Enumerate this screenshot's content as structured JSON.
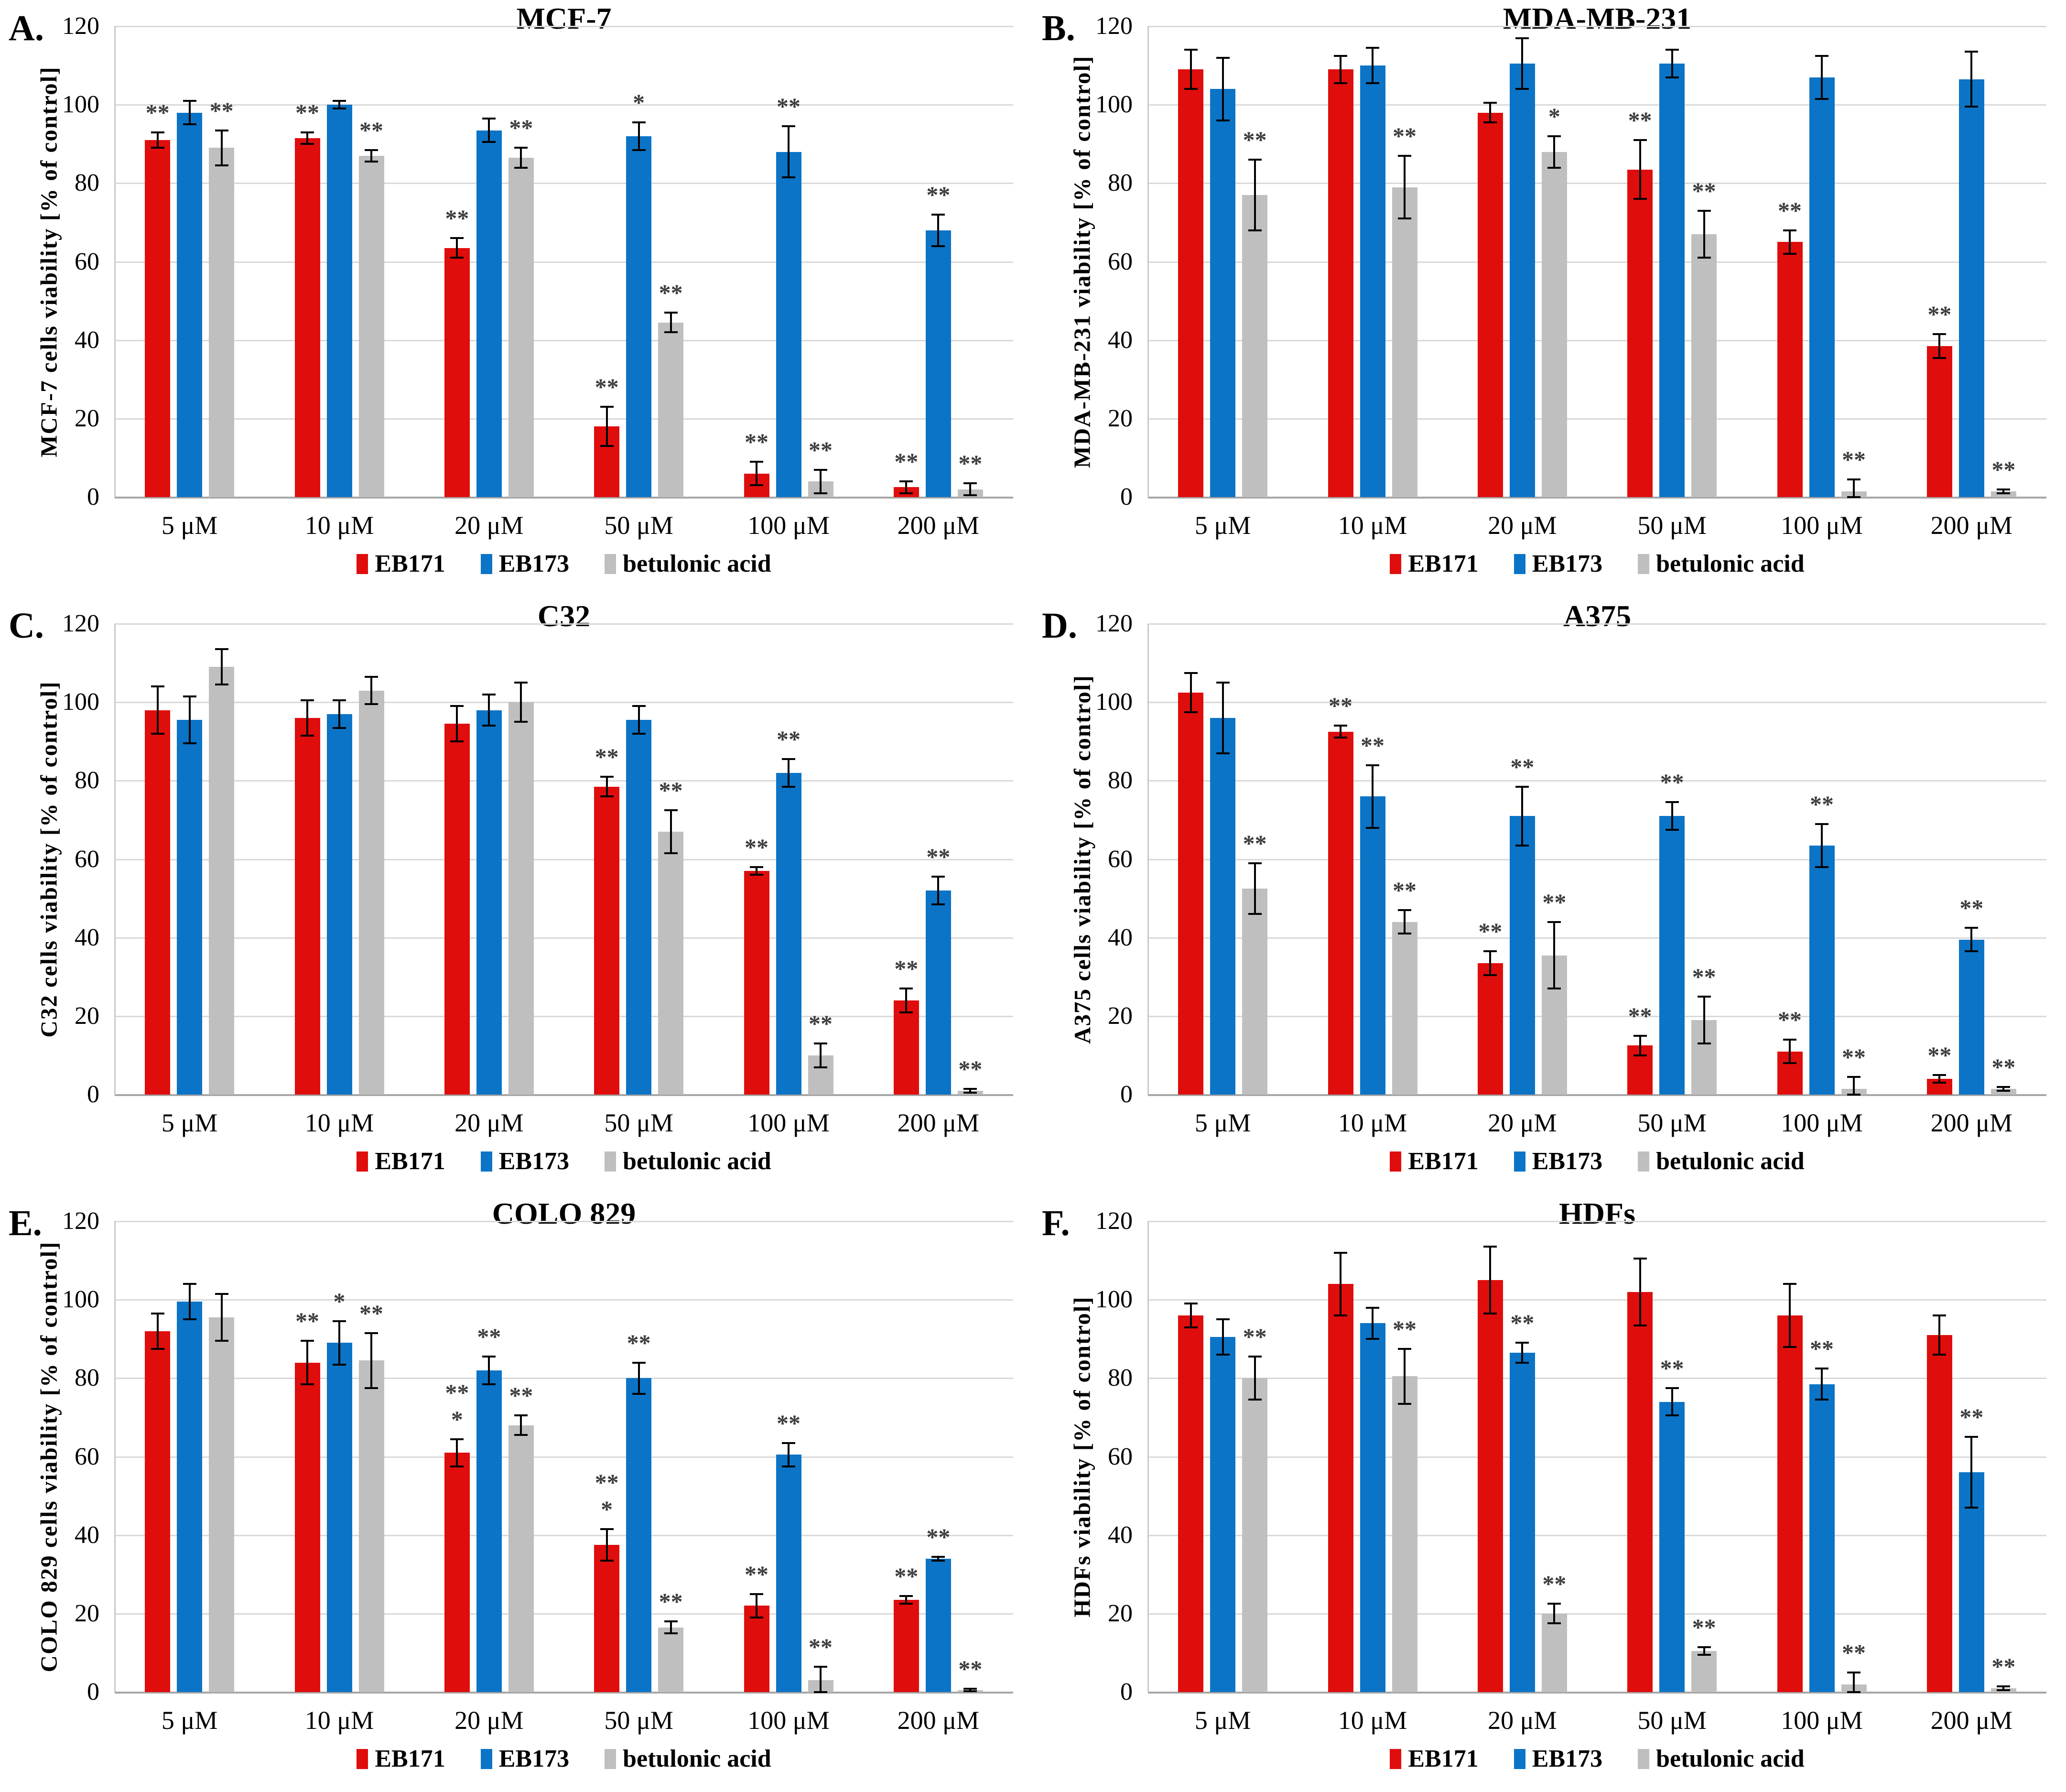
{
  "figure_type": "six-panel cell viability bar charts",
  "legend": [
    {
      "label": "EB171",
      "color": "#e00d0d"
    },
    {
      "label": "EB173",
      "color": "#0c74c6"
    },
    {
      "label": "betulonic acid",
      "color": "#bfbfbf"
    }
  ],
  "style": {
    "sig_color": "#3d3d3d",
    "grid_color": "#d9d9d9",
    "axis_color": "#a6a6a6",
    "error_bar_color": "#000000"
  },
  "chart_data": [
    {
      "type": "bar",
      "letter": "A.",
      "title": "MCF-7",
      "ylabel": "MCF-7 cells viability [% of control]",
      "categories": [
        "5 μM",
        "10 μM",
        "20 μM",
        "50 μM",
        "100 μM",
        "200 μM"
      ],
      "ylim": [
        0,
        120
      ],
      "yticks": [
        0,
        20,
        40,
        60,
        80,
        100,
        120
      ],
      "grid": true,
      "legend_position": "bottom",
      "series": [
        {
          "name": "EB171",
          "color": "#e00d0d",
          "values": [
            91,
            91.5,
            63.5,
            18,
            6,
            2.5
          ],
          "errors": [
            2,
            1.5,
            2.5,
            5,
            3,
            1.5
          ],
          "sig": [
            "**",
            "**",
            "**",
            "**",
            "**",
            "**"
          ]
        },
        {
          "name": "EB173",
          "color": "#0c74c6",
          "values": [
            98,
            100,
            93.5,
            92,
            88,
            68
          ],
          "errors": [
            3,
            1,
            3,
            3.5,
            6.5,
            4
          ],
          "sig": [
            "",
            "",
            "",
            "*",
            "**",
            "**"
          ]
        },
        {
          "name": "betulonic acid",
          "color": "#bfbfbf",
          "values": [
            89,
            87,
            86.5,
            44.5,
            4,
            2
          ],
          "errors": [
            4.5,
            1.5,
            2.5,
            2.5,
            3,
            1.5
          ],
          "sig": [
            "**",
            "**",
            "**",
            "**",
            "**",
            "**"
          ]
        }
      ]
    },
    {
      "type": "bar",
      "letter": "B.",
      "title": "MDA-MB-231",
      "ylabel": "MDA-MB-231 viability [% of control]",
      "categories": [
        "5 μM",
        "10 μM",
        "20 μM",
        "50 μM",
        "100 μM",
        "200 μM"
      ],
      "ylim": [
        0,
        120
      ],
      "yticks": [
        0,
        20,
        40,
        60,
        80,
        100,
        120
      ],
      "grid": true,
      "legend_position": "bottom",
      "series": [
        {
          "name": "EB171",
          "color": "#e00d0d",
          "values": [
            109,
            109,
            98,
            83.5,
            65,
            38.5
          ],
          "errors": [
            5,
            3.5,
            2.5,
            7.5,
            3,
            3
          ],
          "sig": [
            "",
            "",
            "",
            "**",
            "**",
            "**"
          ]
        },
        {
          "name": "EB173",
          "color": "#0c74c6",
          "values": [
            104,
            110,
            110.5,
            110.5,
            107,
            106.5
          ],
          "errors": [
            8,
            4.5,
            6.5,
            3.5,
            5.5,
            7
          ],
          "sig": [
            "",
            "",
            "",
            "",
            "",
            ""
          ]
        },
        {
          "name": "betulonic acid",
          "color": "#bfbfbf",
          "values": [
            77,
            79,
            88,
            67,
            1.5,
            1.5
          ],
          "errors": [
            9,
            8,
            4,
            6,
            3,
            0.5
          ],
          "sig": [
            "**",
            "**",
            "*",
            "**",
            "**",
            "**"
          ]
        }
      ]
    },
    {
      "type": "bar",
      "letter": "C.",
      "title": "C32",
      "ylabel": "C32 cells viability [% of control]",
      "categories": [
        "5 μM",
        "10 μM",
        "20 μM",
        "50 μM",
        "100 μM",
        "200 μM"
      ],
      "ylim": [
        0,
        120
      ],
      "yticks": [
        0,
        20,
        40,
        60,
        80,
        100,
        120
      ],
      "grid": true,
      "legend_position": "bottom",
      "series": [
        {
          "name": "EB171",
          "color": "#e00d0d",
          "values": [
            98,
            96,
            94.5,
            78.5,
            57,
            24
          ],
          "errors": [
            6,
            4.5,
            4.5,
            2.5,
            1,
            3
          ],
          "sig": [
            "",
            "",
            "",
            "**",
            "**",
            "**"
          ]
        },
        {
          "name": "EB173",
          "color": "#0c74c6",
          "values": [
            95.5,
            97,
            98,
            95.5,
            82,
            52
          ],
          "errors": [
            6,
            3.5,
            4,
            3.5,
            3.5,
            3.5
          ],
          "sig": [
            "",
            "",
            "",
            "",
            "**",
            "**"
          ]
        },
        {
          "name": "betulonic acid",
          "color": "#bfbfbf",
          "values": [
            109,
            103,
            100,
            67,
            10,
            1
          ],
          "errors": [
            4.5,
            3.5,
            5,
            5.5,
            3,
            0.5
          ],
          "sig": [
            "",
            "",
            "",
            "**",
            "**",
            "**"
          ]
        }
      ]
    },
    {
      "type": "bar",
      "letter": "D.",
      "title": "A375",
      "ylabel": "A375 cells viability [% of control]",
      "categories": [
        "5 μM",
        "10 μM",
        "20 μM",
        "50 μM",
        "100 μM",
        "200 μM"
      ],
      "ylim": [
        0,
        120
      ],
      "yticks": [
        0,
        20,
        40,
        60,
        80,
        100,
        120
      ],
      "grid": true,
      "legend_position": "bottom",
      "series": [
        {
          "name": "EB171",
          "color": "#e00d0d",
          "values": [
            102.5,
            92.5,
            33.5,
            12.5,
            11,
            4
          ],
          "errors": [
            5,
            1.5,
            3,
            2.5,
            3,
            1
          ],
          "sig": [
            "",
            "**",
            "**",
            "**",
            "**",
            "**"
          ]
        },
        {
          "name": "EB173",
          "color": "#0c74c6",
          "values": [
            96,
            76,
            71,
            71,
            63.5,
            39.5
          ],
          "errors": [
            9,
            8,
            7.5,
            3.5,
            5.5,
            3
          ],
          "sig": [
            "",
            "**",
            "**",
            "**",
            "**",
            "**"
          ]
        },
        {
          "name": "betulonic acid",
          "color": "#bfbfbf",
          "values": [
            52.5,
            44,
            35.5,
            19,
            1.5,
            1.5
          ],
          "errors": [
            6.5,
            3,
            8.5,
            6,
            3,
            0.5
          ],
          "sig": [
            "**",
            "**",
            "**",
            "**",
            "**",
            "**"
          ]
        }
      ]
    },
    {
      "type": "bar",
      "letter": "E.",
      "title": "COLO 829",
      "ylabel": "COLO 829 cells viability [% of control]",
      "categories": [
        "5 μM",
        "10 μM",
        "20 μM",
        "50 μM",
        "100 μM",
        "200 μM"
      ],
      "ylim": [
        0,
        120
      ],
      "yticks": [
        0,
        20,
        40,
        60,
        80,
        100,
        120
      ],
      "grid": true,
      "legend_position": "bottom",
      "series": [
        {
          "name": "EB171",
          "color": "#e00d0d",
          "values": [
            92,
            84,
            61,
            37.5,
            22,
            23.5
          ],
          "errors": [
            4.5,
            5.5,
            3.5,
            4,
            3,
            1
          ],
          "sig": [
            "",
            "**",
            "**|*",
            "**|*",
            "**",
            "**"
          ]
        },
        {
          "name": "EB173",
          "color": "#0c74c6",
          "values": [
            99.5,
            89,
            82,
            80,
            60.5,
            34
          ],
          "errors": [
            4.5,
            5.5,
            3.5,
            4,
            3,
            0.5
          ],
          "sig": [
            "",
            "*",
            "**",
            "**",
            "**",
            "**"
          ]
        },
        {
          "name": "betulonic acid",
          "color": "#bfbfbf",
          "values": [
            95.5,
            84.5,
            68,
            16.5,
            3,
            0.5
          ],
          "errors": [
            6,
            7,
            2.5,
            1.5,
            3.5,
            0.3
          ],
          "sig": [
            "",
            "**",
            "**",
            "**",
            "**",
            "**"
          ]
        }
      ]
    },
    {
      "type": "bar",
      "letter": "F.",
      "title": "HDFs",
      "ylabel": "HDFs viability [% of control]",
      "categories": [
        "5 μM",
        "10 μM",
        "20 μM",
        "50 μM",
        "100 μM",
        "200 μM"
      ],
      "ylim": [
        0,
        120
      ],
      "yticks": [
        0,
        20,
        40,
        60,
        80,
        100,
        120
      ],
      "grid": true,
      "legend_position": "bottom",
      "series": [
        {
          "name": "EB171",
          "color": "#e00d0d",
          "values": [
            96,
            104,
            105,
            102,
            96,
            91
          ],
          "errors": [
            3,
            8,
            8.5,
            8.5,
            8,
            5
          ],
          "sig": [
            "",
            "",
            "",
            "",
            "",
            ""
          ]
        },
        {
          "name": "EB173",
          "color": "#0c74c6",
          "values": [
            90.5,
            94,
            86.5,
            74,
            78.5,
            56
          ],
          "errors": [
            4.5,
            4,
            2.5,
            3.5,
            4,
            9
          ],
          "sig": [
            "",
            "",
            "**",
            "**",
            "**",
            "**"
          ]
        },
        {
          "name": "betulonic acid",
          "color": "#bfbfbf",
          "values": [
            80,
            80.5,
            20,
            10.5,
            2,
            1
          ],
          "errors": [
            5.5,
            7,
            2.5,
            1,
            3,
            0.5
          ],
          "sig": [
            "**",
            "**",
            "**",
            "**",
            "**",
            "**"
          ]
        }
      ]
    }
  ]
}
